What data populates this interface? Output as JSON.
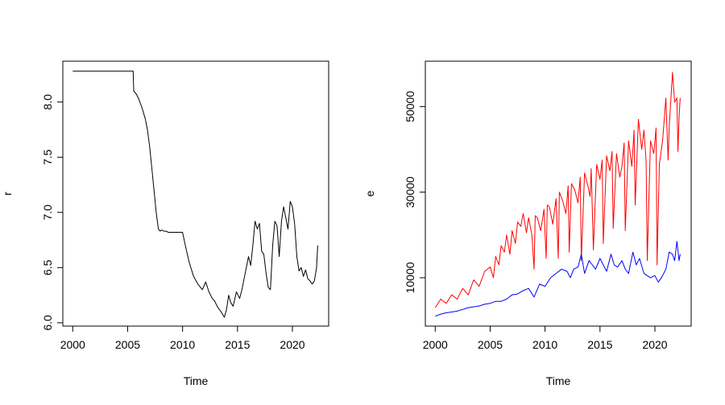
{
  "chart_data": [
    {
      "type": "line",
      "title": "",
      "xlabel": "Time",
      "ylabel": "r",
      "xlim": [
        1999.1,
        2023.3
      ],
      "ylim": [
        5.97,
        8.37
      ],
      "xticks": [
        2000,
        2005,
        2010,
        2015,
        2020
      ],
      "xtick_labels": [
        "2000",
        "2005",
        "2010",
        "2015",
        "2020"
      ],
      "yticks": [
        6.0,
        6.5,
        7.0,
        7.5,
        8.0
      ],
      "ytick_labels": [
        "6.0",
        "6.5",
        "7.0",
        "7.5",
        "8.0"
      ],
      "grid": false,
      "series": [
        {
          "color": "#000000",
          "x": [
            2000.0,
            2001.0,
            2002.5,
            2003.5,
            2005.0,
            2005.5,
            2005.55,
            2005.8,
            2006.0,
            2006.3,
            2006.6,
            2006.8,
            2007.0,
            2007.2,
            2007.4,
            2007.6,
            2007.8,
            2007.95,
            2008.1,
            2008.3,
            2008.5,
            2008.7,
            2009.0,
            2009.5,
            2010.0,
            2010.3,
            2010.6,
            2011.0,
            2011.4,
            2011.8,
            2012.1,
            2012.4,
            2012.7,
            2012.9,
            2013.2,
            2013.5,
            2013.8,
            2014.0,
            2014.2,
            2014.4,
            2014.6,
            2014.9,
            2015.2,
            2015.4,
            2015.7,
            2016.0,
            2016.2,
            2016.4,
            2016.6,
            2016.8,
            2017.0,
            2017.2,
            2017.4,
            2017.6,
            2017.8,
            2018.0,
            2018.2,
            2018.4,
            2018.6,
            2018.8,
            2019.0,
            2019.2,
            2019.4,
            2019.6,
            2019.8,
            2020.0,
            2020.2,
            2020.4,
            2020.6,
            2020.8,
            2021.0,
            2021.2,
            2021.4,
            2021.6,
            2021.8,
            2022.0,
            2022.2,
            2022.3
          ],
          "y": [
            8.28,
            8.28,
            8.28,
            8.28,
            8.28,
            8.28,
            8.1,
            8.07,
            8.03,
            7.95,
            7.85,
            7.75,
            7.6,
            7.4,
            7.2,
            7.0,
            6.85,
            6.83,
            6.84,
            6.83,
            6.83,
            6.82,
            6.82,
            6.82,
            6.82,
            6.68,
            6.55,
            6.42,
            6.35,
            6.3,
            6.37,
            6.28,
            6.22,
            6.2,
            6.14,
            6.1,
            6.05,
            6.12,
            6.25,
            6.18,
            6.15,
            6.28,
            6.22,
            6.3,
            6.45,
            6.6,
            6.52,
            6.7,
            6.92,
            6.85,
            6.9,
            6.65,
            6.62,
            6.45,
            6.32,
            6.3,
            6.7,
            6.92,
            6.88,
            6.6,
            6.92,
            7.05,
            6.95,
            6.85,
            7.1,
            7.05,
            6.9,
            6.6,
            6.47,
            6.5,
            6.42,
            6.48,
            6.4,
            6.38,
            6.35,
            6.38,
            6.5,
            6.7
          ]
        }
      ]
    },
    {
      "type": "line",
      "title": "",
      "xlabel": "Time",
      "ylabel": "e",
      "xlim": [
        1999.1,
        2023.3
      ],
      "ylim": [
        -1300,
        60600
      ],
      "xticks": [
        2000,
        2005,
        2010,
        2015,
        2020
      ],
      "xtick_labels": [
        "2000",
        "2005",
        "2010",
        "2015",
        "2020"
      ],
      "yticks": [
        10000,
        30000,
        50000
      ],
      "ytick_labels": [
        "10000",
        "30000",
        "50000"
      ],
      "grid": false,
      "series": [
        {
          "color": "#ff0000",
          "x": [
            2000.0,
            2000.5,
            2001.0,
            2001.5,
            2002.0,
            2002.5,
            2003.0,
            2003.5,
            2004.0,
            2004.5,
            2005.0,
            2005.3,
            2005.5,
            2005.8,
            2006.0,
            2006.3,
            2006.5,
            2006.8,
            2007.0,
            2007.3,
            2007.5,
            2007.8,
            2008.0,
            2008.3,
            2008.5,
            2008.8,
            2009.0,
            2009.1,
            2009.3,
            2009.6,
            2009.9,
            2010.1,
            2010.2,
            2010.4,
            2010.7,
            2011.0,
            2011.2,
            2011.3,
            2011.6,
            2011.9,
            2012.1,
            2012.2,
            2012.4,
            2012.7,
            2013.0,
            2013.2,
            2013.3,
            2013.6,
            2013.9,
            2014.1,
            2014.2,
            2014.4,
            2014.7,
            2015.0,
            2015.2,
            2015.3,
            2015.6,
            2015.9,
            2016.1,
            2016.2,
            2016.5,
            2016.8,
            2017.0,
            2017.2,
            2017.3,
            2017.6,
            2017.9,
            2018.1,
            2018.2,
            2018.5,
            2018.8,
            2019.0,
            2019.2,
            2019.3,
            2019.6,
            2019.9,
            2020.1,
            2020.2,
            2020.4,
            2020.7,
            2021.0,
            2021.2,
            2021.3,
            2021.6,
            2021.8,
            2022.0,
            2022.1,
            2022.2,
            2022.3
          ],
          "y": [
            3000,
            5000,
            4000,
            6000,
            5000,
            7500,
            6000,
            9500,
            8000,
            11500,
            12500,
            10000,
            15000,
            13000,
            17500,
            16000,
            20000,
            15500,
            21000,
            18000,
            23000,
            22000,
            25000,
            20500,
            24000,
            20000,
            12000,
            24500,
            24000,
            21000,
            26000,
            14500,
            27000,
            26500,
            22500,
            28500,
            14500,
            30000,
            28000,
            25000,
            31500,
            16000,
            32000,
            30500,
            27500,
            33500,
            14000,
            34500,
            31500,
            29000,
            35500,
            16500,
            36500,
            33000,
            37500,
            18000,
            38500,
            35000,
            39500,
            21500,
            39000,
            33500,
            36000,
            41500,
            21000,
            42000,
            36000,
            44500,
            27000,
            47000,
            40000,
            44500,
            37000,
            14000,
            42000,
            39000,
            45000,
            13000,
            36500,
            42000,
            52000,
            37500,
            45000,
            58000,
            51000,
            52000,
            39500,
            47500,
            52000
          ]
        },
        {
          "color": "#0000ff",
          "x": [
            2000.0,
            2000.5,
            2001.0,
            2001.5,
            2002.0,
            2002.5,
            2003.0,
            2003.5,
            2004.0,
            2004.5,
            2005.0,
            2005.5,
            2006.0,
            2006.5,
            2007.0,
            2007.5,
            2008.0,
            2008.5,
            2009.0,
            2009.5,
            2010.0,
            2010.5,
            2011.0,
            2011.5,
            2012.0,
            2012.3,
            2012.6,
            2013.0,
            2013.3,
            2013.6,
            2014.0,
            2014.3,
            2014.6,
            2015.0,
            2015.3,
            2015.6,
            2016.0,
            2016.3,
            2016.6,
            2017.0,
            2017.3,
            2017.6,
            2018.0,
            2018.3,
            2018.6,
            2019.0,
            2019.3,
            2019.6,
            2020.0,
            2020.3,
            2020.6,
            2021.0,
            2021.3,
            2021.6,
            2021.8,
            2022.0,
            2022.2,
            2022.3
          ],
          "y": [
            1000,
            1500,
            1800,
            2000,
            2200,
            2600,
            3000,
            3200,
            3400,
            3800,
            4000,
            4500,
            4500,
            5000,
            6000,
            6200,
            7000,
            7500,
            5500,
            8500,
            8000,
            10000,
            11000,
            12000,
            11500,
            10000,
            12000,
            12500,
            15500,
            11000,
            14000,
            13000,
            12000,
            14500,
            13000,
            11500,
            15500,
            13000,
            12500,
            14000,
            12000,
            11000,
            16000,
            13000,
            14500,
            11000,
            10500,
            10000,
            10500,
            9000,
            10000,
            12000,
            16000,
            15500,
            14000,
            18500,
            14000,
            15500
          ]
        }
      ]
    }
  ]
}
